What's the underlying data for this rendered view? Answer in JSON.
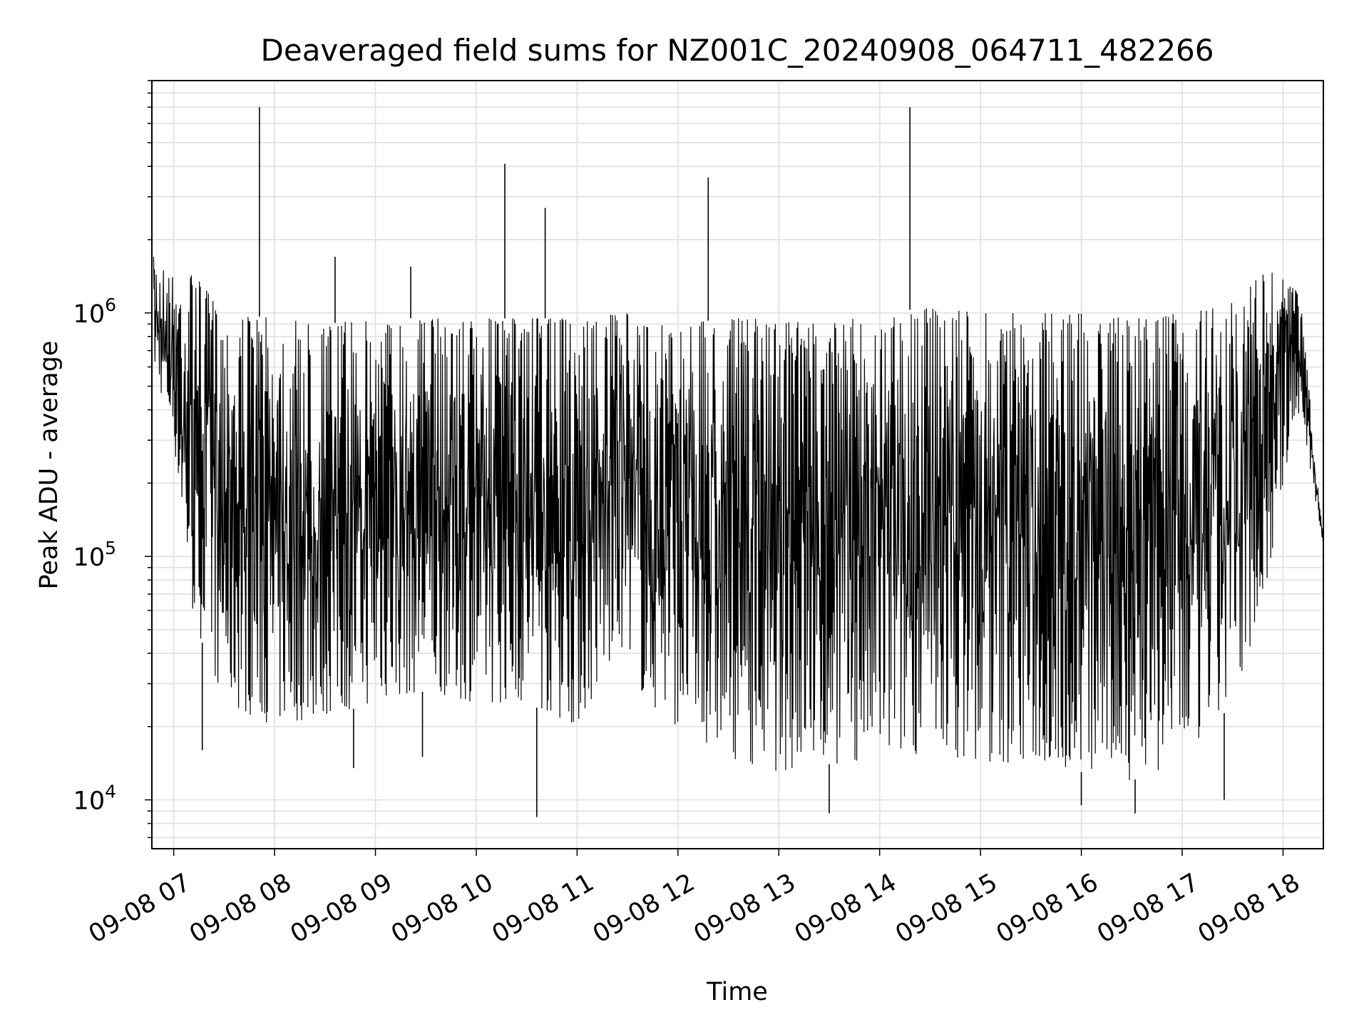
{
  "chart_data": {
    "type": "line",
    "title": "Deaveraged field sums for NZ001C_20240908_064711_482266",
    "xlabel": "Time",
    "ylabel": "Peak ADU - average",
    "yscale": "log",
    "ylim": [
      6300,
      9000000
    ],
    "xlim": [
      "09-08 06:47",
      "09-08 18:24"
    ],
    "grid": true,
    "line_color": "#000000",
    "grid_color": "#e5e5e5",
    "x_ticks": [
      {
        "label": "09-08 07",
        "time": "09-08 07:00"
      },
      {
        "label": "09-08 08",
        "time": "09-08 08:00"
      },
      {
        "label": "09-08 09",
        "time": "09-08 09:00"
      },
      {
        "label": "09-08 10",
        "time": "09-08 10:00"
      },
      {
        "label": "09-08 11",
        "time": "09-08 11:00"
      },
      {
        "label": "09-08 12",
        "time": "09-08 12:00"
      },
      {
        "label": "09-08 13",
        "time": "09-08 13:00"
      },
      {
        "label": "09-08 14",
        "time": "09-08 14:00"
      },
      {
        "label": "09-08 15",
        "time": "09-08 15:00"
      },
      {
        "label": "09-08 16",
        "time": "09-08 16:00"
      },
      {
        "label": "09-08 17",
        "time": "09-08 17:00"
      },
      {
        "label": "09-08 18",
        "time": "09-08 18:00"
      }
    ],
    "y_ticks": [
      {
        "base": "10",
        "exp": "4",
        "value": 10000
      },
      {
        "base": "10",
        "exp": "5",
        "value": 100000
      },
      {
        "base": "10",
        "exp": "6",
        "value": 1000000
      }
    ],
    "series": [
      {
        "envelope": [
          {
            "time": "09-08 06:48",
            "low": 600000,
            "high": 1700000
          },
          {
            "time": "09-08 07:00",
            "low": 300000,
            "high": 1400000
          },
          {
            "time": "09-08 07:10",
            "low": 60000,
            "high": 1500000
          },
          {
            "time": "09-08 07:30",
            "low": 25000,
            "high": 1000000
          },
          {
            "time": "09-08 08:00",
            "low": 20000,
            "high": 950000
          },
          {
            "time": "09-08 08:30",
            "low": 22000,
            "high": 900000
          },
          {
            "time": "09-08 09:00",
            "low": 25000,
            "high": 950000
          },
          {
            "time": "09-08 09:30",
            "low": 28000,
            "high": 950000
          },
          {
            "time": "09-08 10:00",
            "low": 25000,
            "high": 950000
          },
          {
            "time": "09-08 10:30",
            "low": 25000,
            "high": 950000
          },
          {
            "time": "09-08 11:00",
            "low": 20000,
            "high": 950000
          },
          {
            "time": "09-08 11:30",
            "low": 45000,
            "high": 1000000
          },
          {
            "time": "09-08 11:40",
            "low": 25000,
            "high": 900000
          },
          {
            "time": "09-08 12:00",
            "low": 20000,
            "high": 900000
          },
          {
            "time": "09-08 12:30",
            "low": 15000,
            "high": 950000
          },
          {
            "time": "09-08 13:00",
            "low": 13000,
            "high": 950000
          },
          {
            "time": "09-08 13:30",
            "low": 14000,
            "high": 900000
          },
          {
            "time": "09-08 14:00",
            "low": 14000,
            "high": 1000000
          },
          {
            "time": "09-08 14:30",
            "low": 16000,
            "high": 1050000
          },
          {
            "time": "09-08 15:00",
            "low": 14000,
            "high": 1000000
          },
          {
            "time": "09-08 15:30",
            "low": 14000,
            "high": 1000000
          },
          {
            "time": "09-08 16:00",
            "low": 13000,
            "high": 1000000
          },
          {
            "time": "09-08 16:30",
            "low": 12000,
            "high": 950000
          },
          {
            "time": "09-08 17:00",
            "low": 14000,
            "high": 1000000
          },
          {
            "time": "09-08 17:30",
            "low": 25000,
            "high": 1100000
          },
          {
            "time": "09-08 17:50",
            "low": 70000,
            "high": 1500000
          },
          {
            "time": "09-08 18:00",
            "low": 200000,
            "high": 1400000
          },
          {
            "time": "09-08 18:10",
            "low": 400000,
            "high": 1200000
          },
          {
            "time": "09-08 18:24",
            "low": 110000,
            "high": 120000
          }
        ],
        "spikes": [
          {
            "time": "09-08 07:51",
            "value": 7000000
          },
          {
            "time": "09-08 08:36",
            "value": 1700000
          },
          {
            "time": "09-08 09:21",
            "value": 1550000
          },
          {
            "time": "09-08 10:17",
            "value": 4100000
          },
          {
            "time": "09-08 10:41",
            "value": 2700000
          },
          {
            "time": "09-08 12:18",
            "value": 3600000
          },
          {
            "time": "09-08 14:18",
            "value": 7000000
          },
          {
            "time": "09-08 07:17",
            "value": 16000
          },
          {
            "time": "09-08 08:47",
            "value": 13500
          },
          {
            "time": "09-08 09:28",
            "value": 15000
          },
          {
            "time": "09-08 10:36",
            "value": 8500
          },
          {
            "time": "09-08 13:30",
            "value": 8800
          },
          {
            "time": "09-08 16:00",
            "value": 9500
          },
          {
            "time": "09-08 16:32",
            "value": 8800
          },
          {
            "time": "09-08 17:25",
            "value": 10000
          }
        ]
      }
    ]
  }
}
